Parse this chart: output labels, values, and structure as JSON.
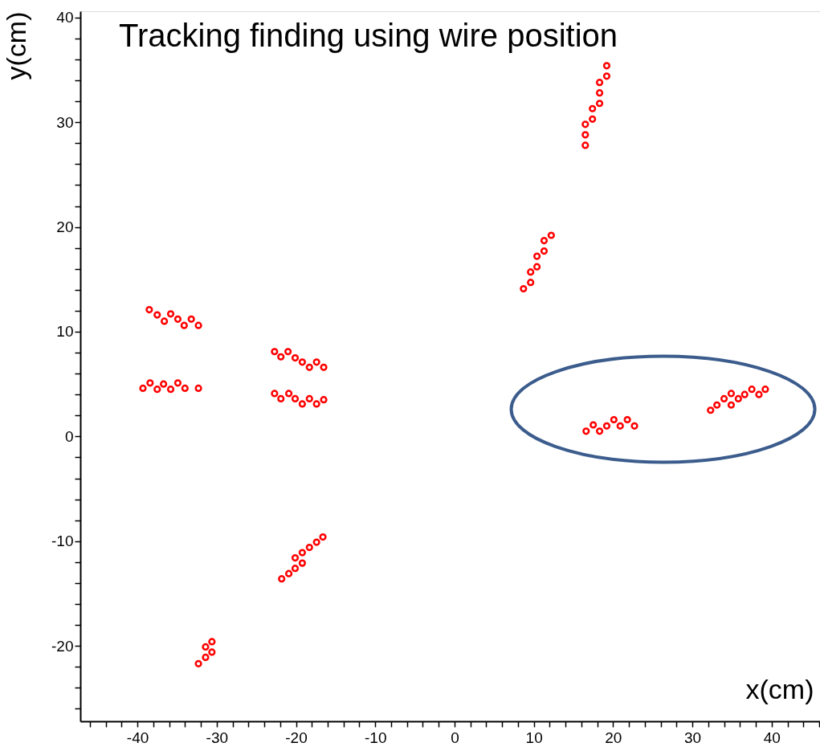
{
  "chart_data": {
    "type": "scatter",
    "title": "Tracking finding using wire position",
    "xlabel": "x(cm)",
    "ylabel": "y(cm)",
    "x": [
      -38.5,
      -37.5,
      -36.6,
      -35.8,
      -34.9,
      -34.1,
      -33.2,
      -32.3,
      -39.3,
      -38.4,
      -37.5,
      -36.7,
      -35.8,
      -34.9,
      -34.0,
      -32.3,
      -22.7,
      -21.9,
      -21.0,
      -20.1,
      -19.2,
      -18.3,
      -17.4,
      -16.5,
      -22.7,
      -21.9,
      -20.9,
      -20.1,
      -19.2,
      -18.3,
      -17.4,
      -16.5,
      -21.8,
      -20.9,
      -20.1,
      -20.1,
      -19.2,
      -19.2,
      -18.3,
      -17.4,
      -16.6,
      -32.3,
      -31.4,
      -31.4,
      -30.6,
      -30.6,
      19.2,
      19.2,
      18.3,
      18.3,
      18.3,
      17.4,
      17.4,
      16.5,
      16.5,
      16.5,
      8.7,
      9.6,
      9.6,
      10.4,
      10.4,
      11.3,
      11.3,
      12.2,
      16.6,
      17.5,
      18.3,
      19.2,
      20.1,
      20.9,
      21.8,
      22.7,
      32.3,
      33.1,
      34.0,
      34.9,
      34.9,
      35.8,
      36.6,
      37.5,
      38.4,
      39.2
    ],
    "series": [
      {
        "color": "#ff0000",
        "values": [
          12.1,
          11.6,
          11.0,
          11.7,
          11.2,
          10.6,
          11.2,
          10.6,
          4.6,
          5.1,
          4.5,
          5.0,
          4.5,
          5.1,
          4.6,
          4.6,
          8.1,
          7.6,
          8.1,
          7.5,
          7.1,
          6.6,
          7.1,
          6.6,
          4.1,
          3.6,
          4.1,
          3.6,
          3.1,
          3.6,
          3.1,
          3.5,
          -13.6,
          -13.1,
          -12.6,
          -11.6,
          -12.1,
          -11.1,
          -10.6,
          -10.1,
          -9.6,
          -21.7,
          -21.1,
          -20.1,
          -20.6,
          -19.6,
          35.4,
          34.4,
          33.8,
          32.8,
          31.8,
          31.3,
          30.3,
          29.8,
          28.8,
          27.8,
          14.1,
          14.7,
          15.7,
          16.2,
          17.2,
          17.7,
          18.7,
          19.2,
          0.5,
          1.1,
          0.5,
          1.0,
          1.6,
          1.0,
          1.6,
          1.0,
          2.5,
          3.0,
          3.6,
          4.1,
          3.0,
          3.6,
          4.0,
          4.5,
          4.0,
          4.5
        ]
      }
    ],
    "xlim": [
      -47.2,
      46.1
    ],
    "xticks": [
      {
        "value": -46,
        "label": null
      },
      {
        "value": -44,
        "label": null
      },
      {
        "value": -42,
        "label": null
      },
      -40,
      {
        "value": -38,
        "label": null
      },
      {
        "value": -36,
        "label": null
      },
      {
        "value": -34,
        "label": null
      },
      {
        "value": -32,
        "label": null
      },
      -30,
      {
        "value": -28,
        "label": null
      },
      {
        "value": -26,
        "label": null
      },
      {
        "value": -24,
        "label": null
      },
      {
        "value": -22,
        "label": null
      },
      -20,
      {
        "value": -18,
        "label": null
      },
      {
        "value": -16,
        "label": null
      },
      {
        "value": -14,
        "label": null
      },
      {
        "value": -12,
        "label": null
      },
      -10,
      {
        "value": -8,
        "label": null
      },
      {
        "value": -6,
        "label": null
      },
      {
        "value": -4,
        "label": null
      },
      {
        "value": -2,
        "label": null
      },
      0,
      {
        "value": 2,
        "label": null
      },
      {
        "value": 4,
        "label": null
      },
      {
        "value": 6,
        "label": null
      },
      {
        "value": 8,
        "label": null
      },
      10,
      {
        "value": 12,
        "label": null
      },
      {
        "value": 14,
        "label": null
      },
      {
        "value": 16,
        "label": null
      },
      {
        "value": 18,
        "label": null
      },
      20,
      {
        "value": 22,
        "label": null
      },
      {
        "value": 24,
        "label": null
      },
      {
        "value": 26,
        "label": null
      },
      {
        "value": 28,
        "label": null
      },
      30,
      {
        "value": 32,
        "label": null
      },
      {
        "value": 34,
        "label": null
      },
      {
        "value": 36,
        "label": null
      },
      {
        "value": 38,
        "label": null
      },
      40,
      {
        "value": 42,
        "label": null
      },
      {
        "value": 44,
        "label": null
      },
      {
        "value": 46,
        "label": null
      }
    ],
    "ylim": [
      -27.2,
      40.6
    ],
    "yticks": [
      {
        "value": -26,
        "label": null
      },
      {
        "value": -24,
        "label": null
      },
      {
        "value": -22,
        "label": null
      },
      -20,
      {
        "value": -18,
        "label": null
      },
      {
        "value": -16,
        "label": null
      },
      {
        "value": -14,
        "label": null
      },
      {
        "value": -12,
        "label": null
      },
      -10,
      {
        "value": -8,
        "label": null
      },
      {
        "value": -6,
        "label": null
      },
      {
        "value": -4,
        "label": null
      },
      {
        "value": -2,
        "label": null
      },
      0,
      {
        "value": 2,
        "label": null
      },
      {
        "value": 4,
        "label": null
      },
      {
        "value": 6,
        "label": null
      },
      {
        "value": 8,
        "label": null
      },
      10,
      {
        "value": 12,
        "label": null
      },
      {
        "value": 14,
        "label": null
      },
      {
        "value": 16,
        "label": null
      },
      {
        "value": 18,
        "label": null
      },
      20,
      {
        "value": 22,
        "label": null
      },
      {
        "value": 24,
        "label": null
      },
      {
        "value": 26,
        "label": null
      },
      {
        "value": 28,
        "label": null
      },
      30,
      {
        "value": 32,
        "label": null
      },
      {
        "value": 34,
        "label": null
      },
      {
        "value": 36,
        "label": null
      },
      {
        "value": 38,
        "label": null
      },
      40
    ],
    "marker": "circle",
    "grid": false
  }
}
